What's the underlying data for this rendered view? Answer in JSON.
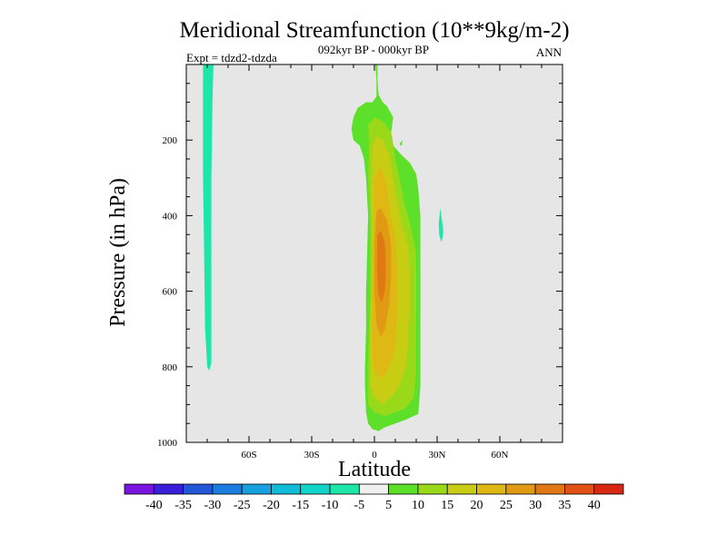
{
  "chart_data": {
    "type": "contour",
    "title": "Meridional Streamfunction (10**9kg/m-2)",
    "subtitle": "092kyr BP - 000kyr BP",
    "left_label": "Expt = tdzd2-tdzda",
    "right_label": "ANN",
    "xlabel": "Latitude",
    "ylabel": "Pressure (in hPa)",
    "xlim": [
      -90,
      90
    ],
    "ylim": [
      1000,
      0
    ],
    "xticks": [
      {
        "value": -60,
        "label": "60S"
      },
      {
        "value": -30,
        "label": "30S"
      },
      {
        "value": 0,
        "label": "0"
      },
      {
        "value": 30,
        "label": "30N"
      },
      {
        "value": 60,
        "label": "60N"
      }
    ],
    "yticks": [
      {
        "value": 200,
        "label": "200"
      },
      {
        "value": 400,
        "label": "400"
      },
      {
        "value": 600,
        "label": "600"
      },
      {
        "value": 800,
        "label": "800"
      },
      {
        "value": 1000,
        "label": "1000"
      }
    ],
    "missing_color": "#e6e6e6",
    "colorbar": {
      "levels": [
        -40,
        -35,
        -30,
        -25,
        -20,
        -15,
        -10,
        -5,
        5,
        10,
        15,
        20,
        25,
        30,
        35,
        40
      ],
      "labels": [
        "-40",
        "-35",
        "-30",
        "-25",
        "-20",
        "-15",
        "-10",
        "-5",
        "5",
        "10",
        "15",
        "20",
        "25",
        "30",
        "35",
        "40"
      ],
      "colors": [
        "#7b14e0",
        "#3a1fd8",
        "#2456d8",
        "#1c7fe0",
        "#16a0e0",
        "#10bcd8",
        "#12d4c8",
        "#1ee6a8",
        "#f0f0f0",
        "#5ce02a",
        "#9ad81a",
        "#c8cc12",
        "#e0b814",
        "#e09a14",
        "#e07814",
        "#e05214",
        "#d82814"
      ]
    },
    "regions": [
      {
        "name": "weak-negative-cell-60S",
        "level": "-5 to -10",
        "color": "#1ee6a8",
        "points": [
          [
            -82,
            0
          ],
          [
            -77,
            0
          ],
          [
            -77.5,
            100
          ],
          [
            -78,
            300
          ],
          [
            -78,
            500
          ],
          [
            -78,
            700
          ],
          [
            -78,
            790
          ],
          [
            -79,
            810
          ],
          [
            -80,
            800
          ],
          [
            -81,
            700
          ],
          [
            -81.5,
            500
          ],
          [
            -82,
            300
          ],
          [
            -82,
            100
          ]
        ]
      },
      {
        "name": "small-negative-patch-30N",
        "level": "-5 to -10",
        "color": "#1ee6a8",
        "points": [
          [
            31.5,
            380
          ],
          [
            33,
            440
          ],
          [
            32.5,
            460
          ],
          [
            32,
            470
          ],
          [
            31,
            450
          ],
          [
            30.8,
            420
          ]
        ]
      },
      {
        "name": "positive-cell-5-10",
        "level": "5 to 10",
        "color": "#5ce02a",
        "points": [
          [
            0.5,
            0
          ],
          [
            1,
            40
          ],
          [
            1,
            85
          ],
          [
            -1,
            100
          ],
          [
            -4,
            100
          ],
          [
            -8,
            115
          ],
          [
            -10,
            140
          ],
          [
            -11,
            170
          ],
          [
            -10,
            200
          ],
          [
            -7,
            215
          ],
          [
            -5,
            250
          ],
          [
            -4,
            300
          ],
          [
            -3,
            400
          ],
          [
            -3.5,
            500
          ],
          [
            -4,
            600
          ],
          [
            -4,
            700
          ],
          [
            -4.5,
            800
          ],
          [
            -4.5,
            850
          ],
          [
            -4,
            920
          ],
          [
            -3,
            950
          ],
          [
            -1,
            965
          ],
          [
            2,
            970
          ],
          [
            5,
            960
          ],
          [
            10,
            950
          ],
          [
            15,
            940
          ],
          [
            21,
            925
          ],
          [
            22,
            850
          ],
          [
            22,
            700
          ],
          [
            22,
            600
          ],
          [
            22,
            500
          ],
          [
            22,
            400
          ],
          [
            21,
            330
          ],
          [
            20,
            290
          ],
          [
            17,
            260
          ],
          [
            13,
            240
          ],
          [
            9,
            215
          ],
          [
            8,
            180
          ],
          [
            9,
            140
          ],
          [
            6,
            110
          ],
          [
            4,
            100
          ],
          [
            2,
            80
          ],
          [
            1.5,
            40
          ],
          [
            1.5,
            0
          ]
        ]
      },
      {
        "name": "positive-cell-tiny-13N",
        "level": "5 to 10",
        "color": "#5ce02a",
        "points": [
          [
            12,
            210
          ],
          [
            13.5,
            200
          ],
          [
            13,
            216
          ]
        ]
      },
      {
        "name": "positive-cell-10-15",
        "level": "10 to 15",
        "color": "#9ad81a",
        "points": [
          [
            -3,
            160
          ],
          [
            0,
            140
          ],
          [
            4,
            150
          ],
          [
            8,
            180
          ],
          [
            9,
            210
          ],
          [
            10,
            250
          ],
          [
            12,
            300
          ],
          [
            14,
            360
          ],
          [
            17,
            420
          ],
          [
            20,
            500
          ],
          [
            20,
            600
          ],
          [
            20,
            700
          ],
          [
            20,
            800
          ],
          [
            19,
            880
          ],
          [
            15,
            910
          ],
          [
            10,
            920
          ],
          [
            5,
            930
          ],
          [
            0,
            920
          ],
          [
            -3,
            900
          ],
          [
            -3,
            800
          ],
          [
            -2,
            600
          ],
          [
            -2,
            400
          ],
          [
            -3,
            300
          ],
          [
            -2.5,
            200
          ]
        ]
      },
      {
        "name": "positive-cell-15-20",
        "level": "15 to 20",
        "color": "#c8cc12",
        "points": [
          [
            -1,
            220
          ],
          [
            1,
            190
          ],
          [
            4,
            200
          ],
          [
            7,
            240
          ],
          [
            9,
            300
          ],
          [
            11,
            360
          ],
          [
            13,
            420
          ],
          [
            16,
            480
          ],
          [
            17,
            550
          ],
          [
            17,
            650
          ],
          [
            16,
            750
          ],
          [
            15,
            800
          ],
          [
            12,
            850
          ],
          [
            8,
            880
          ],
          [
            4,
            900
          ],
          [
            0,
            880
          ],
          [
            -2,
            850
          ],
          [
            -2,
            700
          ],
          [
            -1,
            500
          ],
          [
            -1.5,
            350
          ]
        ]
      },
      {
        "name": "positive-cell-20-25",
        "level": "20 to 25",
        "color": "#e0b814",
        "points": [
          [
            0,
            300
          ],
          [
            3,
            270
          ],
          [
            6,
            320
          ],
          [
            8,
            400
          ],
          [
            10,
            450
          ],
          [
            11,
            550
          ],
          [
            11,
            650
          ],
          [
            10,
            750
          ],
          [
            7,
            800
          ],
          [
            4,
            830
          ],
          [
            1,
            820
          ],
          [
            -1,
            780
          ],
          [
            -1,
            600
          ],
          [
            -0.5,
            450
          ]
        ]
      },
      {
        "name": "positive-cell-25-30",
        "level": "25 to 30",
        "color": "#e09a14",
        "points": [
          [
            1,
            390
          ],
          [
            3,
            380
          ],
          [
            6,
            410
          ],
          [
            8,
            480
          ],
          [
            8,
            560
          ],
          [
            7,
            640
          ],
          [
            5,
            700
          ],
          [
            3,
            720
          ],
          [
            1,
            690
          ],
          [
            0,
            600
          ],
          [
            0,
            480
          ]
        ]
      },
      {
        "name": "positive-cell-30-35",
        "level": "30 to 35",
        "color": "#e07814",
        "points": [
          [
            1.5,
            450
          ],
          [
            3,
            440
          ],
          [
            5,
            470
          ],
          [
            5.5,
            530
          ],
          [
            5,
            600
          ],
          [
            3.5,
            630
          ],
          [
            2,
            610
          ],
          [
            1.2,
            540
          ]
        ]
      }
    ]
  }
}
